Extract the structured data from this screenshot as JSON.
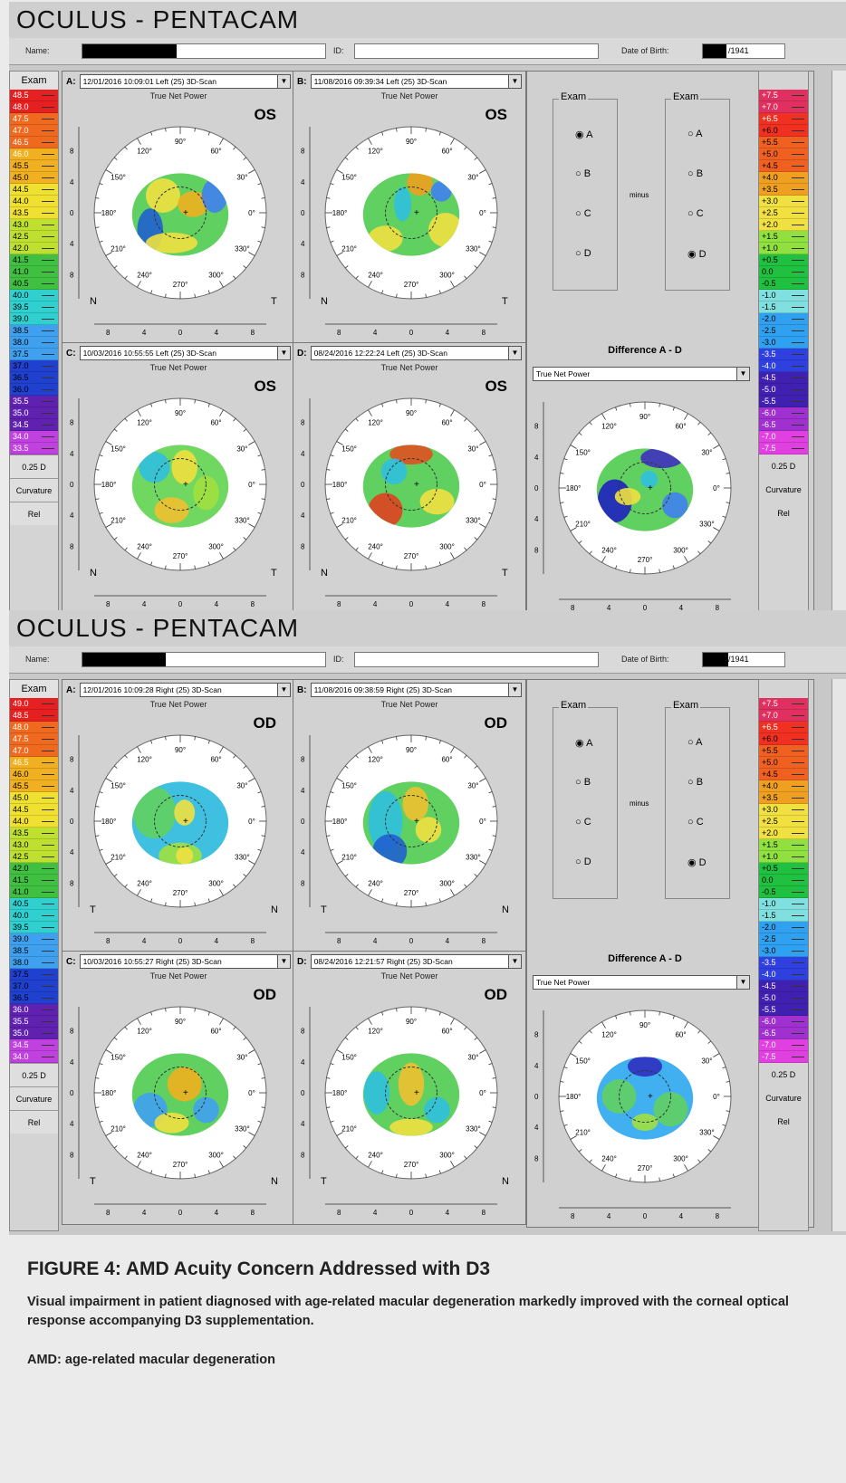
{
  "screens": [
    {
      "title": "OCULUS  -  PENTACAM",
      "name_label": "Name:",
      "id_label": "ID:",
      "dob_label": "Date of Birth:",
      "dob_value": "/1941",
      "scale_header": "Exam",
      "scale_values": [
        "48.5",
        "48.0",
        "47.5",
        "47.0",
        "46.5",
        "46.0",
        "45.5",
        "45.0",
        "44.5",
        "44.0",
        "43.5",
        "43.0",
        "42.5",
        "42.0",
        "41.5",
        "41.0",
        "40.5",
        "40.0",
        "39.5",
        "39.0",
        "38.5",
        "38.0",
        "37.5",
        "37.0",
        "36.5",
        "36.0",
        "35.5",
        "35.0",
        "34.5",
        "34.0",
        "33.5"
      ],
      "scale_step": "0.25 D",
      "scale_mode": "Curvature",
      "scale_rel": "Rel",
      "eye": "OS",
      "side_left": "N",
      "side_right": "T",
      "panels": [
        {
          "letter": "A:",
          "scan": "12/01/2016 10:09:01 Left   (25) 3D-Scan",
          "map": "True Net Power"
        },
        {
          "letter": "B:",
          "scan": "11/08/2016 09:39:34 Left   (25) 3D-Scan",
          "map": "True Net Power"
        },
        {
          "letter": "C:",
          "scan": "10/03/2016 10:55:55 Left   (25) 3D-Scan",
          "map": "True Net Power"
        },
        {
          "letter": "D:",
          "scan": "08/24/2016 12:22:24 Left   (25) 3D-Scan",
          "map": "True Net Power"
        }
      ],
      "diff_title": "Difference A - D",
      "diff_map": "True Net Power"
    },
    {
      "title": "OCULUS  -  PENTACAM",
      "name_label": "Name:",
      "id_label": "ID:",
      "dob_label": "Date of Birth:",
      "dob_value": "/1941",
      "scale_header": "Exam",
      "scale_values": [
        "49.0",
        "48.5",
        "48.0",
        "47.5",
        "47.0",
        "46.5",
        "46.0",
        "45.5",
        "45.0",
        "44.5",
        "44.0",
        "43.5",
        "43.0",
        "42.5",
        "42.0",
        "41.5",
        "41.0",
        "40.5",
        "40.0",
        "39.5",
        "39.0",
        "38.5",
        "38.0",
        "37.5",
        "37.0",
        "36.5",
        "36.0",
        "35.5",
        "35.0",
        "34.5",
        "34.0"
      ],
      "scale_step": "0.25 D",
      "scale_mode": "Curvature",
      "scale_rel": "Rel",
      "eye": "OD",
      "side_left": "T",
      "side_right": "N",
      "panels": [
        {
          "letter": "A:",
          "scan": "12/01/2016 10:09:28 Right  (25) 3D-Scan",
          "map": "True Net Power"
        },
        {
          "letter": "B:",
          "scan": "11/08/2016 09:38:59 Right  (25) 3D-Scan",
          "map": "True Net Power"
        },
        {
          "letter": "C:",
          "scan": "10/03/2016 10:55:27 Right  (25) 3D-Scan",
          "map": "True Net Power"
        },
        {
          "letter": "D:",
          "scan": "08/24/2016 12:21:57 Right  (25) 3D-Scan",
          "map": "True Net Power"
        }
      ],
      "diff_title": "Difference A - D",
      "diff_map": "True Net Power"
    }
  ],
  "exam_compare": {
    "left_title": "Exam",
    "right_title": "Exam",
    "options": [
      "A",
      "B",
      "C",
      "D"
    ],
    "left_selected": "A",
    "right_selected": "D",
    "minus_label": "minus"
  },
  "diff_scale": [
    "+7.5",
    "+7.0",
    "+6.5",
    "+6.0",
    "+5.5",
    "+5.0",
    "+4.5",
    "+4.0",
    "+3.5",
    "+3.0",
    "+2.5",
    "+2.0",
    "+1.5",
    "+1.0",
    "+0.5",
    "0.0",
    "-0.5",
    "-1.0",
    "-1.5",
    "-2.0",
    "-2.5",
    "-3.0",
    "-3.5",
    "-4.0",
    "-4.5",
    "-5.0",
    "-5.5",
    "-6.0",
    "-6.5",
    "-7.0",
    "-7.5"
  ],
  "angle_labels": [
    "90°",
    "60°",
    "30°",
    "0°",
    "330°",
    "300°",
    "270°",
    "240°",
    "210°",
    "180°",
    "150°",
    "120°"
  ],
  "axis_ticks_x": [
    "8",
    "4",
    "0",
    "4",
    "8"
  ],
  "axis_ticks_y": [
    "8",
    "4",
    "0",
    "4",
    "8"
  ],
  "caption": {
    "title": "FIGURE 4: AMD Acuity Concern Addressed with D3",
    "body": "Visual impairment in patient diagnosed with age-related macular degeneration markedly improved with the corneal optical response accompanying D3 supplementation.",
    "abbr": "AMD: age-related macular degeneration"
  },
  "colors": {
    "window_bg": "#c8c8c8",
    "selection_black": "#000000"
  }
}
